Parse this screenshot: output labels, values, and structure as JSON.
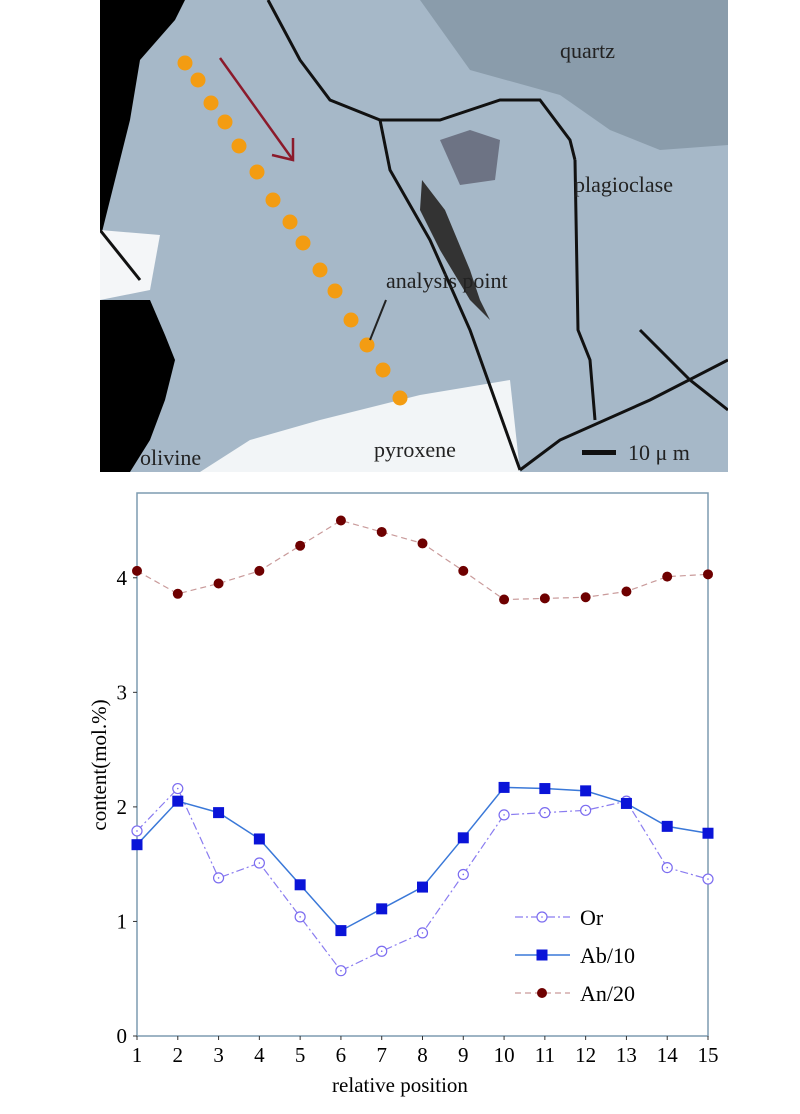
{
  "micrograph": {
    "labels": {
      "quartz": "quartz",
      "plagioclase": "plagioclase",
      "analysis_point": "analysis point",
      "olivine": "olivine",
      "pyroxene": "pyroxene",
      "scale": "10 μ m"
    },
    "colors": {
      "matrix": "#a4b6c6",
      "quartz": "#8a9caa",
      "dots": "#f39c12",
      "arrow": "#8b1a2b"
    }
  },
  "chart_data": {
    "type": "line",
    "xlabel": "relative position",
    "ylabel": "content(mol.%)",
    "x": [
      1,
      2,
      3,
      4,
      5,
      6,
      7,
      8,
      9,
      10,
      11,
      12,
      13,
      14,
      15
    ],
    "xlim": [
      1,
      15
    ],
    "ylim": [
      0,
      4.74
    ],
    "yticks": [
      0,
      1,
      2,
      3,
      4
    ],
    "xticks": [
      1,
      2,
      3,
      4,
      5,
      6,
      7,
      8,
      9,
      10,
      11,
      12,
      13,
      14,
      15
    ],
    "grid": false,
    "legend_position": "bottom-right",
    "series": [
      {
        "name": "Or",
        "color": "#7b6cf0",
        "marker": "open-circle",
        "values": [
          1.79,
          2.16,
          1.38,
          1.51,
          1.04,
          0.57,
          0.74,
          0.9,
          1.41,
          1.93,
          1.95,
          1.97,
          2.05,
          1.47,
          1.37
        ]
      },
      {
        "name": "Ab/10",
        "color": "#0a14d8",
        "marker": "square",
        "values": [
          1.67,
          2.05,
          1.95,
          1.72,
          1.32,
          0.92,
          1.11,
          1.3,
          1.73,
          2.17,
          2.16,
          2.14,
          2.03,
          1.83,
          1.77
        ]
      },
      {
        "name": "An/20",
        "color": "#6e0000",
        "marker": "filled-circle",
        "values": [
          4.06,
          3.86,
          3.95,
          4.06,
          4.28,
          4.5,
          4.4,
          4.3,
          4.06,
          3.81,
          3.82,
          3.83,
          3.88,
          4.01,
          4.03
        ]
      }
    ]
  }
}
